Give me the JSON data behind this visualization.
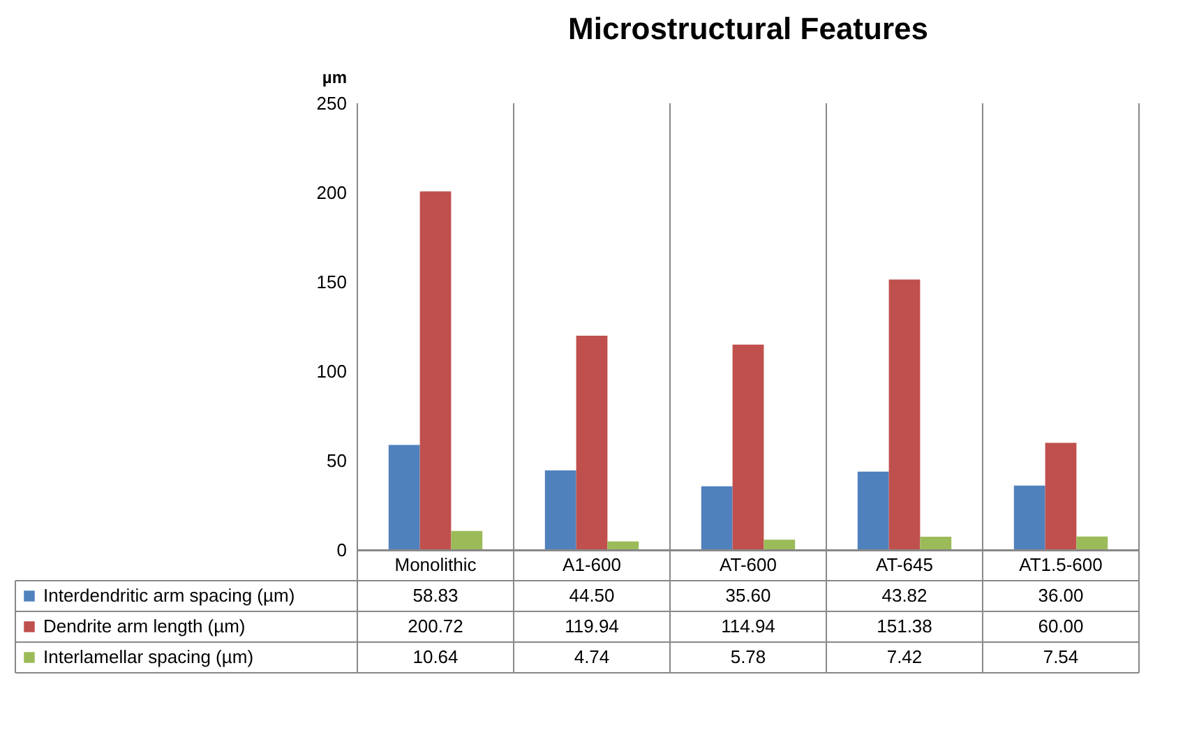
{
  "chart_data": {
    "type": "bar",
    "title": "Microstructural Features",
    "ylabel": "µm",
    "categories": [
      "Monolithic",
      "A1-600",
      "AT-600",
      "AT-645",
      "AT1.5-600"
    ],
    "series": [
      {
        "name": "Interdendritic arm spacing (µm)",
        "color": "#4f81bd",
        "values": [
          58.83,
          44.5,
          35.6,
          43.82,
          36.0
        ],
        "value_labels": [
          "58.83",
          "44.50",
          "35.60",
          "43.82",
          "36.00"
        ]
      },
      {
        "name": "Dendrite arm length  (µm)",
        "color": "#c0504d",
        "values": [
          200.72,
          119.94,
          114.94,
          151.38,
          60.0
        ],
        "value_labels": [
          "200.72",
          "119.94",
          "114.94",
          "151.38",
          "60.00"
        ]
      },
      {
        "name": "Interlamellar spacing (µm)",
        "color": "#9bbb59",
        "values": [
          10.64,
          4.74,
          5.78,
          7.42,
          7.54
        ],
        "value_labels": [
          "10.64",
          "4.74",
          "5.78",
          "7.42",
          "7.54"
        ]
      }
    ],
    "ylim": [
      0,
      250
    ],
    "yticks": [
      0,
      50,
      100,
      150,
      200,
      250
    ],
    "grid": false,
    "legend": "bottom"
  }
}
